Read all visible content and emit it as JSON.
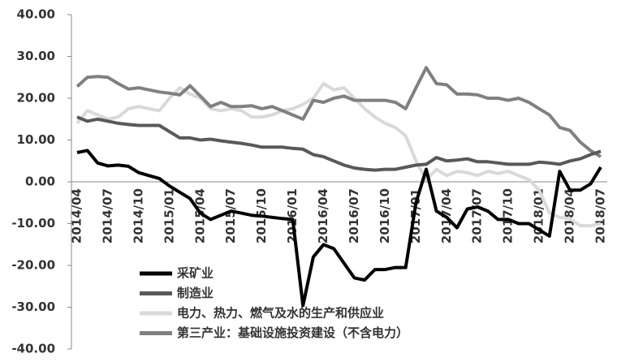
{
  "chart_data": {
    "type": "line",
    "categories": [
      "2014/04",
      null,
      null,
      "2014/07",
      null,
      null,
      "2014/10",
      null,
      null,
      "2015/01",
      null,
      null,
      "2015/04",
      null,
      null,
      "2015/07",
      null,
      null,
      "2015/10",
      null,
      null,
      "2016/01",
      null,
      null,
      "2016/04",
      null,
      null,
      "2016/07",
      null,
      null,
      "2016/10",
      null,
      null,
      "2017/01",
      null,
      null,
      "2017/04",
      null,
      null,
      "2017/07",
      null,
      null,
      "2017/10",
      null,
      null,
      "2018/01",
      null,
      null,
      "2018/04",
      null,
      null,
      "2018/07"
    ],
    "series": [
      {
        "name": "采矿业",
        "color": "#000000",
        "values": [
          7,
          7.5,
          4.5,
          3.8,
          4,
          3.7,
          2.2,
          1.5,
          0.8,
          -1,
          -2.5,
          -4,
          -7.5,
          -9,
          -8,
          -7,
          -7.5,
          -8,
          -8.2,
          -8.5,
          -8.8,
          -9,
          -29.6,
          -18,
          -15,
          -16,
          -19.5,
          -23,
          -23.5,
          -21,
          -21,
          -20.5,
          -20.5,
          -5,
          3,
          -7,
          -8.5,
          -11,
          -6.5,
          -6,
          -7,
          -9,
          -9,
          -10,
          -10,
          -11.5,
          -13,
          2.5,
          -2,
          -2,
          -0.5,
          3.5
        ]
      },
      {
        "name": "制造业",
        "color": "#595959",
        "values": [
          15.5,
          14.5,
          15,
          14.5,
          14,
          13.7,
          13.5,
          13.5,
          13.5,
          12,
          10.5,
          10.5,
          10,
          10.2,
          9.8,
          9.5,
          9.2,
          8.8,
          8.3,
          8.3,
          8.3,
          8,
          7.8,
          6.5,
          6,
          5,
          4,
          3.3,
          3,
          2.8,
          3,
          3,
          3.5,
          4,
          4.2,
          5.8,
          5,
          5.2,
          5.5,
          4.8,
          4.8,
          4.5,
          4.2,
          4.2,
          4.2,
          4.7,
          4.5,
          4.2,
          5,
          5.5,
          6.5,
          7.3
        ]
      },
      {
        "name": "电力、热力、燃气及水的生产和供应业",
        "color": "#d9d9d9",
        "values": [
          14,
          17,
          16,
          15,
          15.5,
          17.5,
          18,
          17.5,
          17,
          20,
          22.5,
          21,
          20,
          17.5,
          17,
          17.5,
          17,
          15.5,
          15.5,
          16,
          17,
          17.5,
          18.5,
          20,
          23.5,
          22,
          22.5,
          20,
          17.5,
          15.5,
          14,
          13,
          11,
          5,
          0.5,
          3,
          1.5,
          2.5,
          2.2,
          1.5,
          2.5,
          2,
          2.5,
          1.5,
          0.5,
          -2,
          -7.5,
          -8.5,
          -8.8,
          -10.5,
          -10.5,
          -10
        ]
      },
      {
        "name": "第三产业：基础设施投资建设（不含电力）",
        "color": "#808080",
        "values": [
          22.8,
          25,
          25.2,
          25,
          23.5,
          22.2,
          22.5,
          22,
          21.5,
          21.2,
          20.8,
          23,
          20.5,
          18,
          19,
          18,
          18,
          18.2,
          17.5,
          18,
          17,
          16,
          15,
          19.5,
          19,
          20,
          20.5,
          19.5,
          19.5,
          19.5,
          19.5,
          19,
          17.5,
          22.5,
          27.3,
          23.5,
          23.2,
          21,
          21,
          20.8,
          20,
          20,
          19.5,
          20,
          19,
          17.5,
          16,
          13,
          12.3,
          9.5,
          7.5,
          6
        ]
      }
    ],
    "ylim": [
      -40,
      40
    ],
    "yticks": [
      {
        "value": -40,
        "label": "-40.00"
      },
      {
        "value": -30,
        "label": "-30.00"
      },
      {
        "value": -20,
        "label": "-20.00"
      },
      {
        "value": -10,
        "label": "-10.00"
      },
      {
        "value": 0,
        "label": "0.00"
      },
      {
        "value": 10,
        "label": "10.00"
      },
      {
        "value": 20,
        "label": "20.00"
      },
      {
        "value": 30,
        "label": "30.00"
      },
      {
        "value": 40,
        "label": "40.00"
      }
    ]
  }
}
